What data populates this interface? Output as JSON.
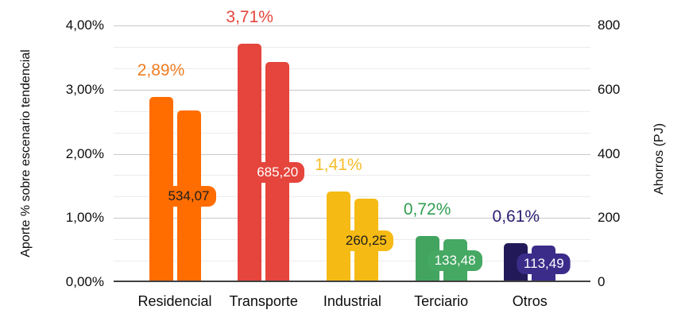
{
  "chart_data": {
    "type": "bar",
    "title": "",
    "categories": [
      "Residencial",
      "Transporte",
      "Industrial",
      "Terciario",
      "Otros"
    ],
    "series": [
      {
        "name": "Aporte % sobre escenario tendencial",
        "axis": "left",
        "values": [
          2.89,
          3.71,
          1.41,
          0.72,
          0.61
        ],
        "data_labels": [
          "2,89%",
          "3,71%",
          "1,41%",
          "0,72%",
          "0,61%"
        ]
      },
      {
        "name": "Ahorros (PJ)",
        "axis": "right",
        "values": [
          534.07,
          685.2,
          260.25,
          133.48,
          113.49
        ],
        "data_labels": [
          "534,07",
          "685,20",
          "260,25",
          "133,48",
          "113,49"
        ]
      }
    ],
    "left_axis": {
      "title": "Aporte % sobre escenario tendencial",
      "range": [
        0,
        4
      ],
      "tick_labels_top_to_bottom": [
        "4,00%",
        "3,00%",
        "2,00%",
        "1,00%",
        "0,00%"
      ]
    },
    "right_axis": {
      "title": "Ahorros (PJ)",
      "range": [
        0,
        800
      ],
      "tick_labels_top_to_bottom": [
        "800",
        "600",
        "400",
        "200",
        "0"
      ]
    },
    "grid": {
      "major_divisions": 4,
      "minor_per_major": 3,
      "major_color": "#c9c9c9",
      "minor_color": "#ececec",
      "baseline_color": "#404040"
    },
    "legend_position": "none",
    "category_styles": [
      {
        "category": "Residencial",
        "bar_pct_color": "#FF6D01",
        "bar_pj_color": "#FF6D01",
        "annotation_color": "#EF7D23",
        "pj_label_text_color": "#1d1d1d"
      },
      {
        "category": "Transporte",
        "bar_pct_color": "#E5453C",
        "bar_pj_color": "#E5453C",
        "annotation_color": "#E5453C",
        "pj_label_text_color": "#ffffff"
      },
      {
        "category": "Industrial",
        "bar_pct_color": "#F5BA14",
        "bar_pj_color": "#F5BA14",
        "annotation_color": "#F6BD2B",
        "pj_label_text_color": "#1d1d1d"
      },
      {
        "category": "Terciario",
        "bar_pct_color": "#42A45F",
        "bar_pj_color": "#45A863",
        "annotation_color": "#2F9E52",
        "pj_label_text_color": "#ffffff"
      },
      {
        "category": "Otros",
        "bar_pct_color": "#221A58",
        "bar_pj_color": "#3C2C8A",
        "annotation_color": "#2B2173",
        "pj_label_text_color": "#ffffff"
      }
    ]
  }
}
